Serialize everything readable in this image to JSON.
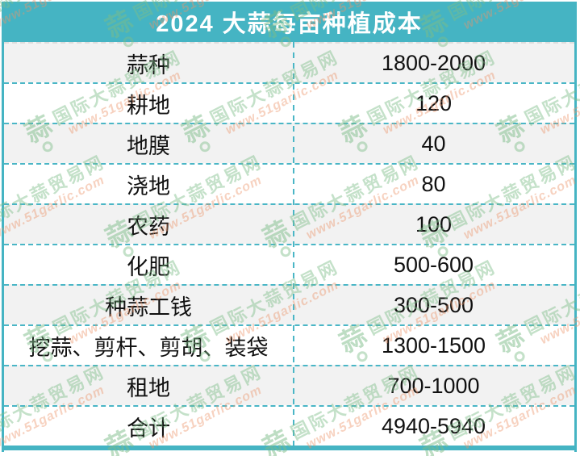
{
  "colors": {
    "header_bg": "#45b4c3",
    "separator_teal": "#4ab6c6",
    "header_separator_gray": "#dcdcdc",
    "row_alt_bg": "#f2f2f2",
    "title_text": "#ffffff",
    "cell_text": "#111111",
    "watermark_green": "#7cbc88",
    "watermark_orange": "#eb946a"
  },
  "watermark": {
    "logo_char": "蒜",
    "site_name": "国际大蒜贸易网",
    "site_url": "www.51garlic.com"
  },
  "chart_data": {
    "type": "table",
    "title": "2024 大蒜每亩种植成本",
    "rows": [
      {
        "label": "蒜种",
        "value": "1800-2000"
      },
      {
        "label": "耕地",
        "value": "120"
      },
      {
        "label": "地膜",
        "value": "40"
      },
      {
        "label": "浇地",
        "value": "80"
      },
      {
        "label": "农药",
        "value": "100"
      },
      {
        "label": "化肥",
        "value": "500-600"
      },
      {
        "label": "种蒜工钱",
        "value": "300-500"
      },
      {
        "label": "挖蒜、剪杆、剪胡、装袋",
        "value": "1300-1500"
      },
      {
        "label": "租地",
        "value": "700-1000"
      },
      {
        "label": "合计",
        "value": "4940-5940"
      }
    ]
  }
}
